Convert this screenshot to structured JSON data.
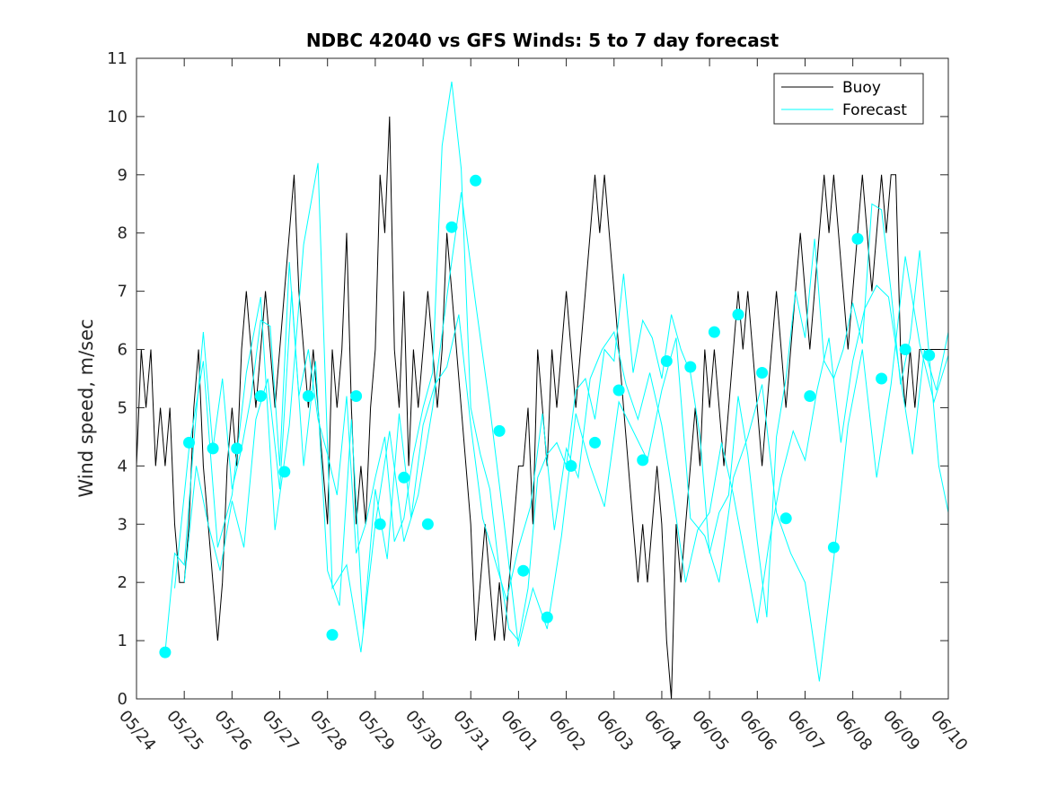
{
  "chart_data": {
    "type": "line",
    "title": "NDBC 42040 vs GFS Winds: 5 to 7 day forecast",
    "xlabel": "",
    "ylabel": "Wind speed, m/sec",
    "x_tick_labels": [
      "05/24",
      "05/25",
      "05/26",
      "05/27",
      "05/28",
      "05/29",
      "05/30",
      "05/31",
      "06/01",
      "06/02",
      "06/03",
      "06/04",
      "06/05",
      "06/06",
      "06/07",
      "06/08",
      "06/09",
      "06/10"
    ],
    "xlim_days": [
      0,
      17
    ],
    "ylim": [
      0,
      11
    ],
    "y_ticks": [
      0,
      1,
      2,
      3,
      4,
      5,
      6,
      7,
      8,
      9,
      10,
      11
    ],
    "grid": false,
    "legend": {
      "placement": "top-right",
      "entries": [
        {
          "name": "Buoy",
          "color": "#000000"
        },
        {
          "name": "Forecast",
          "color": "#00ffff"
        }
      ]
    },
    "series": [
      {
        "name": "Buoy",
        "color": "#000000",
        "x_days": [
          0,
          0.1,
          0.2,
          0.3,
          0.4,
          0.5,
          0.6,
          0.7,
          0.8,
          0.9,
          1.0,
          1.1,
          1.2,
          1.3,
          1.4,
          1.5,
          1.6,
          1.7,
          1.8,
          1.9,
          2.0,
          2.1,
          2.2,
          2.3,
          2.4,
          2.5,
          2.6,
          2.7,
          2.8,
          2.9,
          3.0,
          3.1,
          3.2,
          3.3,
          3.4,
          3.5,
          3.6,
          3.7,
          3.8,
          3.9,
          4.0,
          4.1,
          4.2,
          4.3,
          4.4,
          4.5,
          4.6,
          4.7,
          4.8,
          4.9,
          5.0,
          5.1,
          5.2,
          5.3,
          5.4,
          5.5,
          5.6,
          5.7,
          5.8,
          5.9,
          6.0,
          6.1,
          6.2,
          6.3,
          6.4,
          6.5,
          6.6,
          6.7,
          6.8,
          6.9,
          7.0,
          7.1,
          7.2,
          7.3,
          7.4,
          7.5,
          7.6,
          7.7,
          7.8,
          7.9,
          8.0,
          8.1,
          8.2,
          8.3,
          8.4,
          8.5,
          8.6,
          8.7,
          8.8,
          8.9,
          9.0,
          9.1,
          9.2,
          9.3,
          9.4,
          9.5,
          9.6,
          9.7,
          9.8,
          9.9,
          10.0,
          10.1,
          10.2,
          10.3,
          10.4,
          10.5,
          10.6,
          10.7,
          10.8,
          10.9,
          11.0,
          11.1,
          11.2,
          11.3,
          11.4,
          11.5,
          11.6,
          11.7,
          11.8,
          11.9,
          12.0,
          12.1,
          12.2,
          12.3,
          12.4,
          12.5,
          12.6,
          12.7,
          12.8,
          12.9,
          13.0,
          13.1,
          13.2,
          13.3,
          13.4,
          13.5,
          13.6,
          13.7,
          13.8,
          13.9,
          14.0,
          14.1,
          14.2,
          14.3,
          14.4,
          14.5,
          14.6,
          14.7,
          14.8,
          14.9,
          15.0,
          15.1,
          15.2,
          15.3,
          15.4,
          15.5,
          15.6,
          15.7,
          15.8,
          15.9,
          16.0,
          16.1,
          16.2,
          16.3,
          16.4,
          16.5,
          16.6,
          16.7,
          16.8,
          16.9,
          17.0
        ],
        "values": [
          4,
          6,
          5,
          6,
          4,
          5,
          4,
          5,
          3,
          2,
          2,
          3,
          5,
          6,
          4,
          3,
          2,
          1,
          2,
          4,
          5,
          4,
          6,
          7,
          6,
          5,
          6,
          7,
          6,
          5,
          6,
          7,
          8,
          9,
          7,
          6,
          5,
          6,
          5,
          4,
          3,
          6,
          5,
          6,
          8,
          5,
          3,
          4,
          3,
          5,
          6,
          9,
          8,
          10,
          6,
          5,
          7,
          4,
          6,
          5,
          6,
          7,
          6,
          5,
          6,
          8,
          7,
          6,
          5,
          4,
          3,
          1,
          2,
          3,
          2,
          1,
          2,
          1,
          2,
          3,
          4,
          4,
          5,
          3,
          6,
          5,
          4,
          6,
          5,
          6,
          7,
          6,
          5,
          6,
          7,
          8,
          9,
          8,
          9,
          8,
          7,
          6,
          5,
          4,
          3,
          2,
          3,
          2,
          3,
          4,
          3,
          1,
          0,
          3,
          2,
          3,
          4,
          5,
          4,
          6,
          5,
          6,
          5,
          4,
          5,
          6,
          7,
          6,
          7,
          6,
          5,
          4,
          5,
          6,
          7,
          6,
          5,
          6,
          7,
          8,
          7,
          6,
          7,
          8,
          9,
          8,
          9,
          8,
          7,
          6,
          7,
          8,
          9,
          8,
          7,
          8,
          9,
          8,
          9,
          9,
          6,
          5,
          6,
          5,
          6,
          6,
          6,
          6,
          6,
          6,
          6
        ]
      },
      {
        "name": "Forecast",
        "color": "#00ffff",
        "x_days": [
          0.6,
          0.8,
          1.0,
          1.2,
          1.4,
          1.6,
          1.8,
          2.0,
          2.2,
          2.4,
          2.6,
          2.8,
          3.0,
          3.2,
          3.4,
          3.6,
          3.8,
          4.0,
          4.2,
          4.4,
          4.6,
          4.8,
          5.0,
          5.2,
          5.4,
          5.6,
          5.8,
          6.0,
          6.2,
          6.4,
          6.6,
          6.8,
          7.0,
          7.2,
          7.4,
          7.6,
          7.8,
          8.0,
          8.2,
          8.4,
          8.6,
          8.8,
          9.0,
          9.2,
          9.4,
          9.6,
          9.8,
          10.0,
          10.2,
          10.4,
          10.6,
          10.8,
          11.0,
          11.2,
          11.4,
          11.6,
          11.8,
          12.0,
          12.2,
          12.4,
          12.6,
          12.8,
          13.0,
          13.2,
          13.4,
          13.6,
          13.8,
          14.0,
          14.2,
          14.4,
          14.6,
          14.8,
          15.0,
          15.2,
          15.4,
          15.6,
          15.8,
          16.0,
          16.2,
          16.4,
          16.6,
          16.8,
          17.0
        ],
        "values": [
          0.8,
          2.5,
          2.3,
          4.4,
          6.3,
          4.3,
          5.5,
          3.6,
          4.3,
          5.2,
          6.5,
          6.4,
          4.0,
          7.5,
          5.2,
          6.0,
          4.8,
          4.2,
          3.5,
          5.2,
          2.5,
          3.0,
          3.8,
          4.5,
          2.7,
          3.1,
          4.2,
          5.0,
          5.6,
          9.5,
          10.6,
          9.1,
          5.0,
          4.2,
          3.6,
          2.2,
          1.2,
          1.0,
          1.9,
          3.8,
          4.2,
          4.4,
          4.0,
          5.3,
          5.5,
          4.8,
          6.0,
          5.8,
          7.3,
          5.6,
          6.5,
          6.2,
          5.5,
          6.6,
          6.0,
          5.6,
          4.5,
          2.5,
          3.2,
          3.5,
          5.2,
          4.2,
          2.7,
          1.4,
          4.5,
          5.5,
          7.0,
          6.2,
          7.9,
          5.8,
          5.5,
          6.0,
          6.8,
          6.1,
          8.5,
          8.4,
          7.0,
          5.4,
          6.2,
          7.7,
          5.9,
          4.0,
          3.2
        ]
      },
      {
        "name": "",
        "color": "#00ffff",
        "x_days": [
          1.0,
          1.25,
          1.5,
          1.75,
          2.0,
          2.25,
          2.5,
          2.75,
          3.0,
          3.25,
          3.5,
          3.75,
          4.0,
          4.25,
          4.5,
          4.75,
          5.0,
          5.25,
          5.5,
          5.75,
          6.0,
          6.25,
          6.5,
          6.75,
          7.0,
          7.25,
          7.5,
          7.75,
          8.0,
          8.25,
          8.5,
          8.75,
          9.0,
          9.25,
          9.5,
          9.75,
          10.0,
          10.25,
          10.5,
          10.75,
          11.0,
          11.25,
          11.5,
          11.75,
          12.0,
          12.25,
          12.5,
          12.75,
          13.0,
          13.25,
          13.5,
          13.75,
          14.0,
          14.25,
          14.5,
          14.75,
          15.0,
          15.25,
          15.5,
          15.75,
          16.0,
          16.25,
          16.5,
          16.75,
          17.0
        ],
        "values": [
          2.0,
          4.0,
          3.0,
          2.2,
          3.4,
          2.6,
          4.8,
          5.5,
          3.6,
          7.0,
          4.0,
          5.8,
          2.2,
          1.6,
          4.8,
          1.2,
          3.6,
          2.4,
          4.9,
          3.1,
          4.7,
          5.4,
          5.7,
          6.6,
          4.7,
          3.1,
          2.4,
          1.7,
          2.6,
          3.3,
          4.9,
          2.9,
          4.3,
          3.8,
          5.5,
          6.0,
          6.3,
          5.4,
          4.8,
          5.6,
          4.7,
          3.4,
          2.0,
          2.9,
          3.2,
          4.4,
          3.5,
          2.4,
          1.3,
          2.7,
          3.8,
          4.6,
          4.1,
          5.3,
          6.2,
          4.4,
          5.8,
          6.7,
          7.1,
          6.9,
          5.5,
          4.2,
          6.0,
          5.3,
          6.3
        ]
      },
      {
        "name": "",
        "color": "#00ffff",
        "x_days": [
          0.8,
          1.1,
          1.4,
          1.7,
          2.0,
          2.3,
          2.6,
          2.9,
          3.2,
          3.5,
          3.8,
          4.1,
          4.4,
          4.7,
          5.0,
          5.3,
          5.6,
          5.9,
          6.2,
          6.5,
          6.8,
          7.1,
          7.4,
          7.7,
          8.0,
          8.3,
          8.6,
          8.9,
          9.2,
          9.5,
          9.8,
          10.1,
          10.4,
          10.7,
          11.0,
          11.3,
          11.6,
          11.9,
          12.2,
          12.5,
          12.8,
          13.1,
          13.4,
          13.7,
          14.0,
          14.3,
          14.6,
          14.9,
          15.2,
          15.5,
          15.8,
          16.1,
          16.4,
          16.7,
          17.0
        ],
        "values": [
          1.9,
          4.3,
          5.8,
          2.6,
          3.5,
          5.6,
          6.9,
          2.9,
          4.7,
          7.8,
          9.2,
          1.9,
          2.3,
          0.8,
          3.0,
          4.6,
          2.7,
          3.5,
          5.0,
          6.9,
          8.7,
          6.8,
          5.0,
          3.0,
          0.9,
          1.9,
          1.2,
          2.8,
          4.9,
          4.0,
          3.3,
          5.1,
          4.6,
          4.1,
          5.3,
          6.2,
          3.1,
          2.8,
          2.0,
          3.8,
          4.5,
          5.4,
          3.2,
          2.5,
          2.0,
          0.3,
          2.4,
          4.7,
          6.0,
          3.8,
          5.4,
          7.6,
          6.1,
          5.1,
          5.9
        ]
      }
    ],
    "markers": {
      "name": "",
      "color": "#00ffff",
      "x_days": [
        0.6,
        1.1,
        1.6,
        2.1,
        2.6,
        3.1,
        3.6,
        4.1,
        4.6,
        5.1,
        5.6,
        6.1,
        6.6,
        7.1,
        7.6,
        8.1,
        8.6,
        9.1,
        9.6,
        10.1,
        10.6,
        11.1,
        11.6,
        12.1,
        12.6,
        13.1,
        13.6,
        14.1,
        14.6,
        15.1,
        15.6,
        16.1,
        16.6
      ],
      "values": [
        0.8,
        4.4,
        4.3,
        4.3,
        5.2,
        3.9,
        5.2,
        1.1,
        5.2,
        3.0,
        3.8,
        3.0,
        8.1,
        8.9,
        4.6,
        2.2,
        1.4,
        4.0,
        4.4,
        5.3,
        4.1,
        5.8,
        5.7,
        6.3,
        6.6,
        5.6,
        3.1,
        5.2,
        2.6,
        7.9,
        5.5,
        6.0,
        5.9
      ]
    }
  }
}
